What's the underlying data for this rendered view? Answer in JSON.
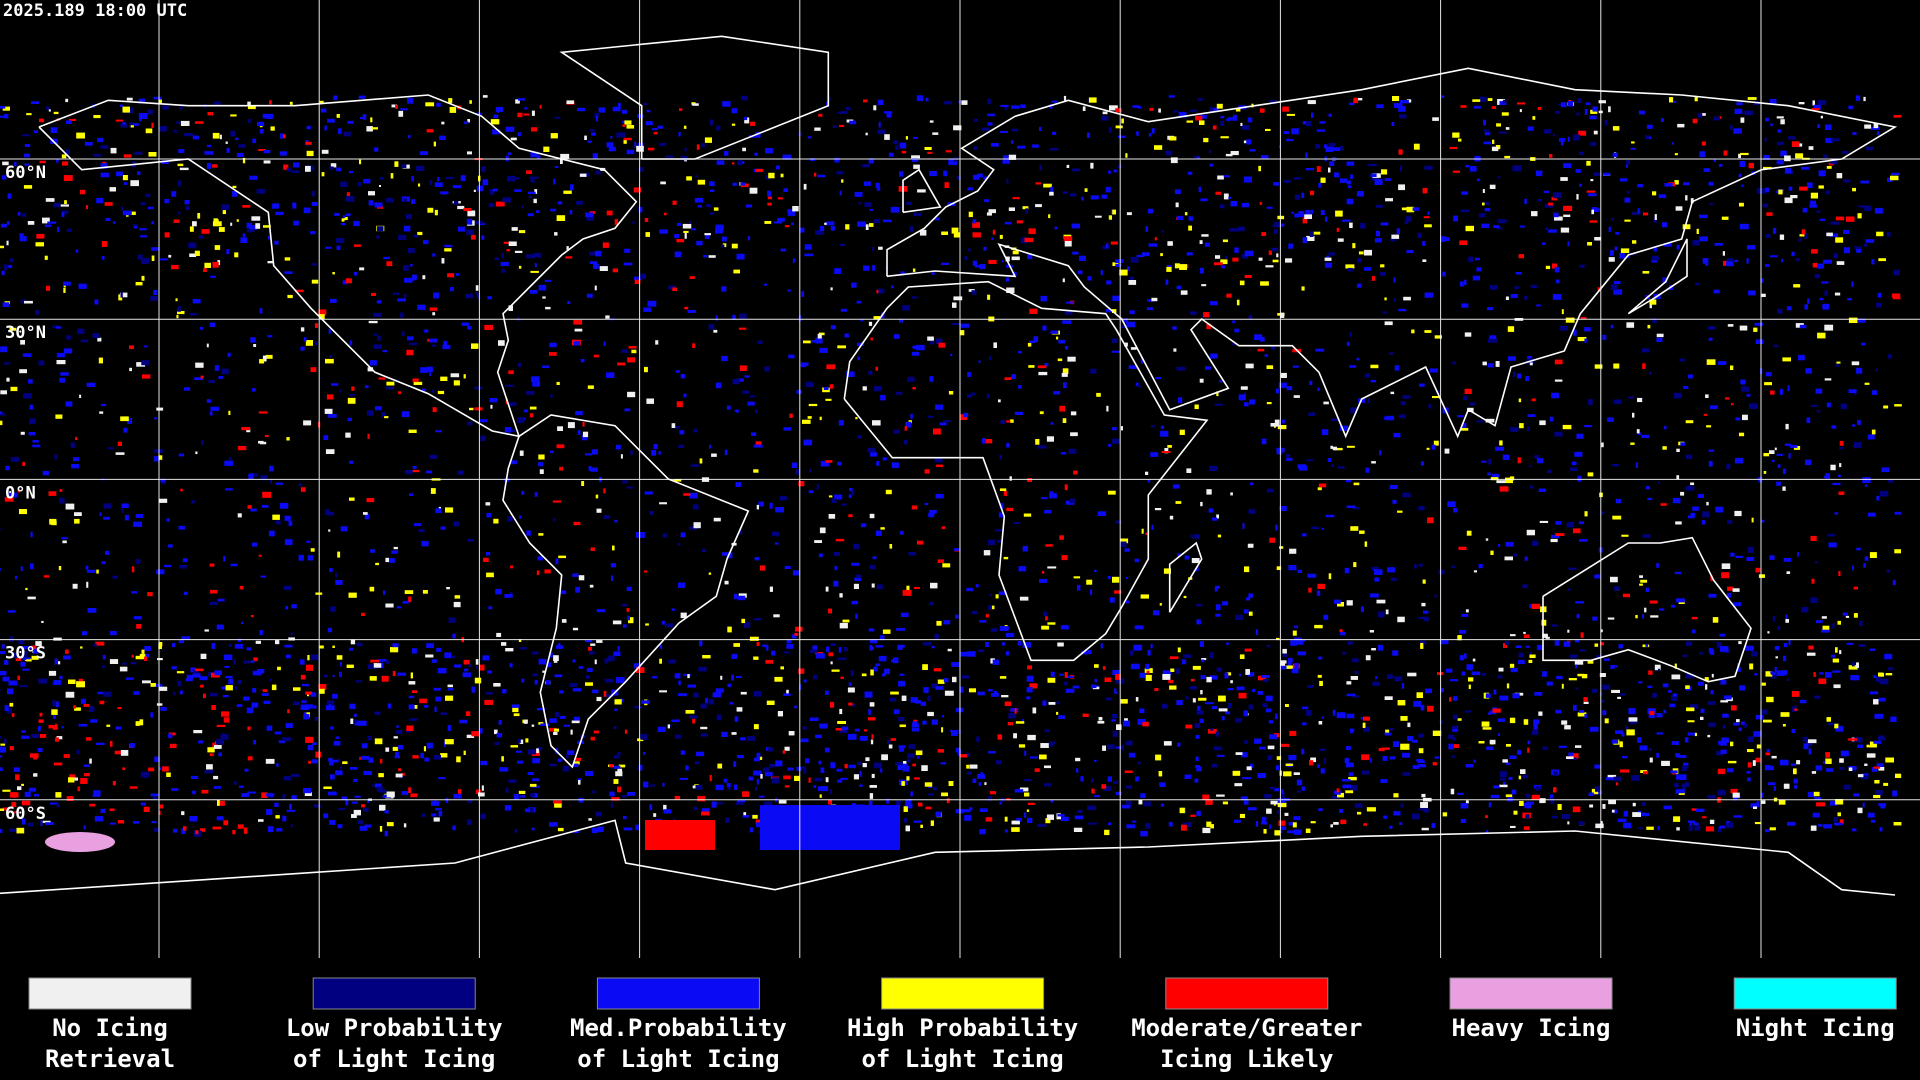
{
  "header": {
    "timestamp": "2025.189 18:00 UTC"
  },
  "map": {
    "latitude_labels": [
      "60°N",
      "30°N",
      "0°N",
      "30°S",
      "60°S"
    ]
  },
  "legend": {
    "items": [
      {
        "label": [
          "No Icing",
          "Retrieval"
        ],
        "color": "#f0f0f0"
      },
      {
        "label": [
          "Low Probability",
          "of Light Icing"
        ],
        "color": "#000080"
      },
      {
        "label": [
          "Med.Probability",
          "of Light Icing"
        ],
        "color": "#0a0af5"
      },
      {
        "label": [
          "High Probability",
          "of Light Icing"
        ],
        "color": "#ffff00"
      },
      {
        "label": [
          "Moderate/Greater",
          "Icing Likely"
        ],
        "color": "#ff0000"
      },
      {
        "label": [
          "Heavy Icing"
        ],
        "color": "#e8a0e0"
      },
      {
        "label": [
          "Night Icing"
        ],
        "color": "#00ffff"
      }
    ]
  }
}
